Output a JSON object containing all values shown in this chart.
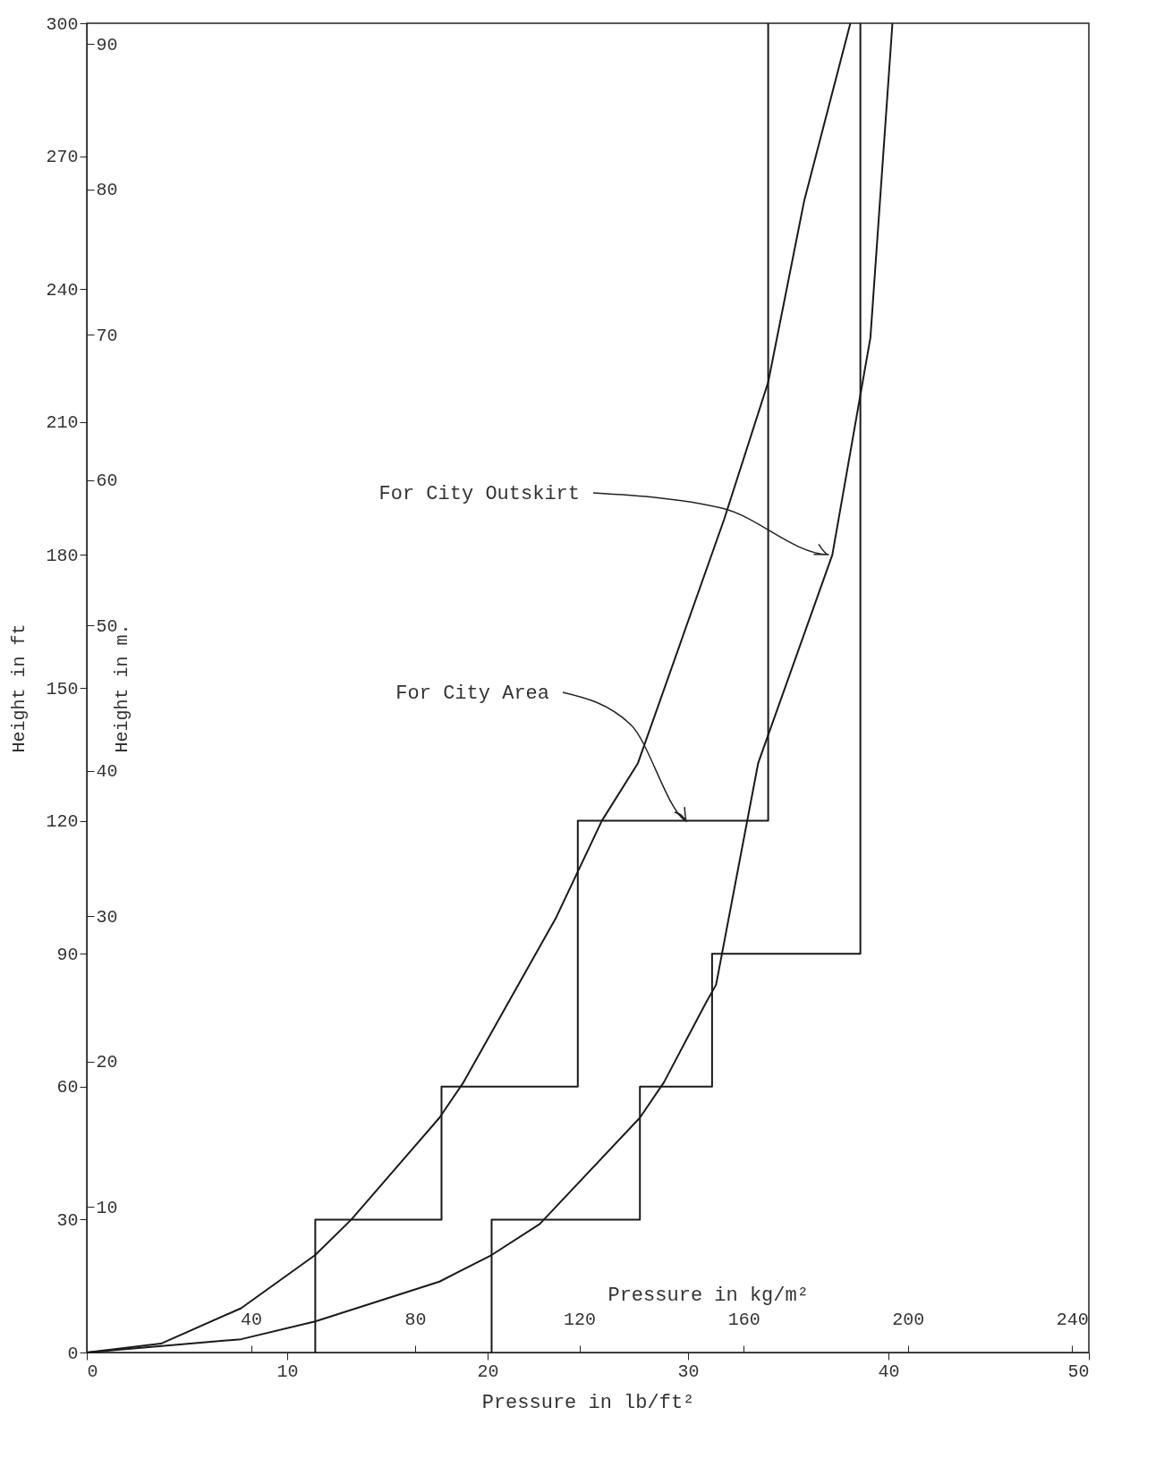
{
  "chart_data": {
    "type": "line",
    "xlabel": "Pressure in lb/ft²",
    "ylabel": "Height in ft",
    "y2label": "Height in m.",
    "x2label": "Pressure in kg/m²",
    "xlim": [
      0,
      50
    ],
    "xticks": [
      0,
      10,
      20,
      30,
      40,
      50
    ],
    "ylim": [
      0,
      300
    ],
    "yticks": [
      0,
      30,
      60,
      90,
      120,
      150,
      180,
      210,
      240,
      270,
      300
    ],
    "y2lim": [
      0,
      91.44
    ],
    "y2ticks": [
      10,
      20,
      30,
      40,
      50,
      60,
      70,
      80,
      90
    ],
    "x2lim": [
      0,
      244.1
    ],
    "x2ticks": [
      40,
      80,
      120,
      160,
      200,
      240
    ],
    "series": [
      {
        "color": "#1a1a1a",
        "x": [
          0,
          3.7,
          7.7,
          11.4,
          13.2,
          17.6,
          18.8,
          23.4,
          25.7,
          27.5,
          31.8,
          34.0,
          35.8,
          38.1
        ],
        "values": [
          0,
          2,
          10,
          22,
          30,
          53,
          61,
          98,
          120,
          133,
          188,
          219,
          260,
          300
        ]
      },
      {
        "color": "#1a1a1a",
        "x": [
          0,
          7.7,
          11.4,
          17.6,
          20.2,
          22.6,
          27.6,
          28.8,
          30.9,
          31.4,
          33.5,
          37.2,
          39.1,
          40.2
        ],
        "values": [
          0,
          3,
          7,
          16,
          22,
          29,
          53,
          61,
          79,
          83,
          133,
          180,
          229,
          300
        ]
      },
      {
        "color": "#1a1a1a",
        "x": [
          11.4,
          11.4,
          17.7,
          17.7,
          24.5,
          24.5,
          34,
          34
        ],
        "values": [
          0,
          30,
          30,
          60,
          60,
          120,
          120,
          300
        ]
      },
      {
        "color": "#1a1a1a",
        "x": [
          20.2,
          20.2,
          27.6,
          27.6,
          31.2,
          31.2,
          38.6,
          38.6
        ],
        "values": [
          0,
          30,
          30,
          60,
          60,
          90,
          90,
          300
        ]
      }
    ],
    "annotations": [
      "For City Outskirt",
      "For City Area"
    ]
  }
}
